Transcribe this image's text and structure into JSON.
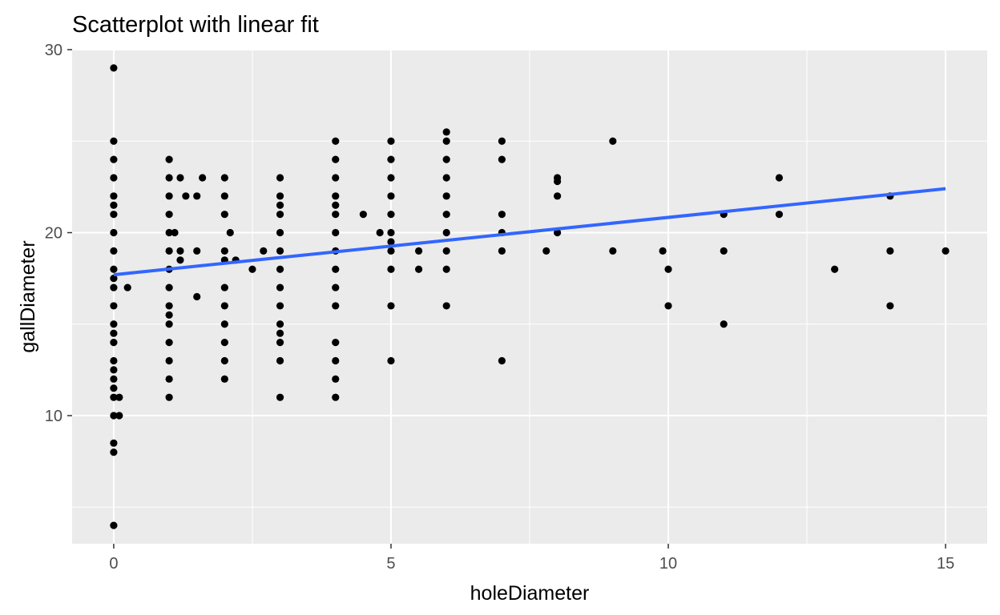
{
  "chart_data": {
    "type": "scatter",
    "title": "Scatterplot with linear fit",
    "xlabel": "holeDiameter",
    "ylabel": "gallDiameter",
    "xlim": [
      -0.75,
      15.75
    ],
    "ylim": [
      3.0,
      30.0
    ],
    "x_ticks": [
      0,
      5,
      10,
      15
    ],
    "y_ticks": [
      10,
      20,
      30
    ],
    "grid": true,
    "colors": {
      "panel": "#ebebeb",
      "grid": "#ffffff",
      "points": "#000000",
      "fit_line": "#3366ff",
      "tick_text": "#4d4d4d"
    },
    "points": [
      [
        0,
        29
      ],
      [
        0,
        25
      ],
      [
        0,
        24
      ],
      [
        0,
        23
      ],
      [
        0,
        22
      ],
      [
        0,
        21.5
      ],
      [
        0,
        21
      ],
      [
        0,
        20
      ],
      [
        0,
        19
      ],
      [
        0,
        18
      ],
      [
        0,
        17.5
      ],
      [
        0,
        17
      ],
      [
        0,
        16
      ],
      [
        0,
        15
      ],
      [
        0,
        14.5
      ],
      [
        0,
        14
      ],
      [
        0,
        13
      ],
      [
        0,
        12.5
      ],
      [
        0,
        12
      ],
      [
        0,
        11.5
      ],
      [
        0,
        11
      ],
      [
        0,
        10
      ],
      [
        0,
        8.5
      ],
      [
        0,
        8
      ],
      [
        0,
        4
      ],
      [
        0.1,
        11
      ],
      [
        0.1,
        10
      ],
      [
        0.25,
        17
      ],
      [
        1,
        24
      ],
      [
        1,
        23
      ],
      [
        1,
        22
      ],
      [
        1,
        21
      ],
      [
        1,
        20
      ],
      [
        1,
        19
      ],
      [
        1,
        18
      ],
      [
        1,
        17
      ],
      [
        1,
        16
      ],
      [
        1,
        15.5
      ],
      [
        1,
        15
      ],
      [
        1,
        14
      ],
      [
        1,
        13
      ],
      [
        1,
        12
      ],
      [
        1,
        11
      ],
      [
        1.1,
        20
      ],
      [
        1.2,
        23
      ],
      [
        1.2,
        19
      ],
      [
        1.2,
        18.5
      ],
      [
        1.3,
        22
      ],
      [
        1.5,
        22
      ],
      [
        1.5,
        19
      ],
      [
        1.5,
        16.5
      ],
      [
        1.6,
        23
      ],
      [
        2,
        23
      ],
      [
        2,
        22
      ],
      [
        2,
        21
      ],
      [
        2,
        19
      ],
      [
        2,
        18.5
      ],
      [
        2,
        17
      ],
      [
        2,
        16
      ],
      [
        2,
        15
      ],
      [
        2,
        14
      ],
      [
        2,
        13
      ],
      [
        2,
        12
      ],
      [
        2.1,
        20
      ],
      [
        2.2,
        18.5
      ],
      [
        2.5,
        18
      ],
      [
        2.7,
        19
      ],
      [
        3,
        23
      ],
      [
        3,
        22
      ],
      [
        3,
        21.5
      ],
      [
        3,
        21
      ],
      [
        3,
        20
      ],
      [
        3,
        19
      ],
      [
        3,
        18
      ],
      [
        3,
        17
      ],
      [
        3,
        16
      ],
      [
        3,
        15
      ],
      [
        3,
        14.5
      ],
      [
        3,
        14
      ],
      [
        3,
        13
      ],
      [
        3,
        11
      ],
      [
        4,
        25
      ],
      [
        4,
        24
      ],
      [
        4,
        23
      ],
      [
        4,
        22
      ],
      [
        4,
        21.5
      ],
      [
        4,
        21
      ],
      [
        4,
        20
      ],
      [
        4,
        19
      ],
      [
        4,
        18
      ],
      [
        4,
        17
      ],
      [
        4,
        16
      ],
      [
        4,
        14
      ],
      [
        4,
        13
      ],
      [
        4,
        12
      ],
      [
        4,
        11
      ],
      [
        4.5,
        21
      ],
      [
        4.8,
        20
      ],
      [
        5,
        25
      ],
      [
        5,
        24
      ],
      [
        5,
        23
      ],
      [
        5,
        22
      ],
      [
        5,
        21
      ],
      [
        5,
        20
      ],
      [
        5,
        19.5
      ],
      [
        5,
        19
      ],
      [
        5,
        18
      ],
      [
        5,
        16
      ],
      [
        5,
        13
      ],
      [
        5.5,
        19
      ],
      [
        5.5,
        18
      ],
      [
        6,
        25.5
      ],
      [
        6,
        25
      ],
      [
        6,
        24
      ],
      [
        6,
        23
      ],
      [
        6,
        22
      ],
      [
        6,
        21
      ],
      [
        6,
        20
      ],
      [
        6,
        19
      ],
      [
        6,
        18
      ],
      [
        6,
        16
      ],
      [
        7,
        25
      ],
      [
        7,
        24
      ],
      [
        7,
        21
      ],
      [
        7,
        20
      ],
      [
        7,
        19
      ],
      [
        7,
        13
      ],
      [
        7.8,
        19
      ],
      [
        8,
        23
      ],
      [
        8,
        22.8
      ],
      [
        8,
        22
      ],
      [
        8,
        20
      ],
      [
        9,
        25
      ],
      [
        9,
        19
      ],
      [
        9.9,
        19
      ],
      [
        10,
        18
      ],
      [
        10,
        16
      ],
      [
        11,
        21
      ],
      [
        11,
        19
      ],
      [
        11,
        15
      ],
      [
        12,
        23
      ],
      [
        12,
        21
      ],
      [
        13,
        18
      ],
      [
        14,
        22
      ],
      [
        14,
        19
      ],
      [
        14,
        16
      ],
      [
        15,
        19
      ]
    ],
    "fit": {
      "x": [
        0,
        15
      ],
      "y": [
        17.7,
        22.4
      ]
    }
  }
}
